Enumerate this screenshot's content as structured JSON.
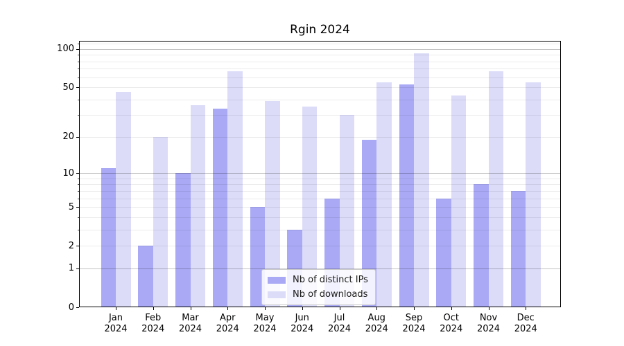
{
  "title": "Rgin 2024",
  "legend": {
    "items": [
      "Nb of distinct IPs",
      "Nb of downloads"
    ]
  },
  "y_axis": {
    "tick_labels": [
      "0",
      "1",
      "2",
      "5",
      "10",
      "20",
      "50",
      "100"
    ]
  },
  "x_axis": {
    "year_line": "2024"
  },
  "chart_data": {
    "type": "bar",
    "title": "Rgin 2024",
    "categories": [
      "Jan",
      "Feb",
      "Mar",
      "Apr",
      "May",
      "Jun",
      "Jul",
      "Aug",
      "Sep",
      "Oct",
      "Nov",
      "Dec"
    ],
    "category_year": "2024",
    "series": [
      {
        "name": "Nb of distinct IPs",
        "color": "#a9a9f5",
        "values": [
          11,
          2,
          10,
          34,
          5,
          3,
          6,
          19,
          53,
          6,
          8,
          7
        ]
      },
      {
        "name": "Nb of downloads",
        "color": "#dcdcf9",
        "values": [
          46,
          20,
          36,
          67,
          39,
          35,
          30,
          55,
          93,
          43,
          67,
          55
        ]
      }
    ],
    "yscale": "log1p",
    "ylim": [
      0,
      116
    ],
    "yticks": [
      0,
      1,
      2,
      5,
      10,
      20,
      50,
      100
    ],
    "ytick_major_grid": [
      1,
      10,
      100
    ],
    "ytick_minor_grid": [
      2,
      3,
      4,
      5,
      6,
      7,
      8,
      9,
      20,
      30,
      40,
      50,
      60,
      70,
      80,
      90,
      110
    ],
    "grid": "both",
    "legend_position": "lower center"
  }
}
